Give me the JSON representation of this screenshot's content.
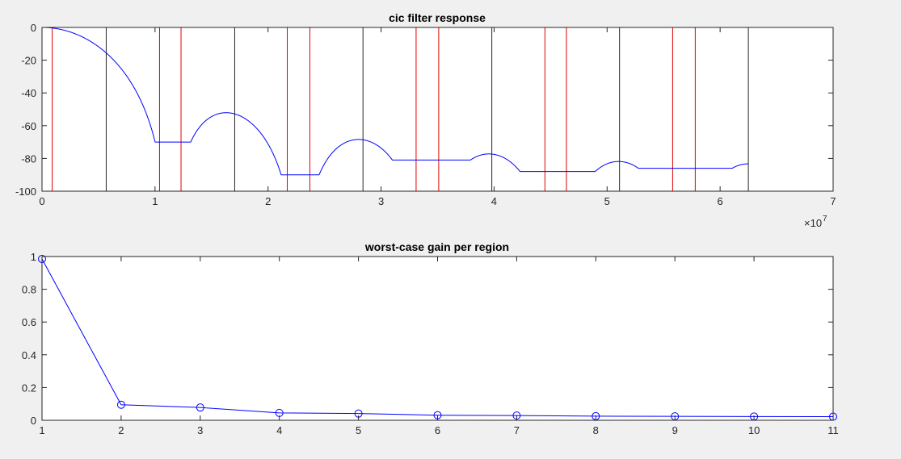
{
  "colors": {
    "background": "#f0f0f0",
    "axes_bg": "#ffffff",
    "axis": "#262626",
    "series": "#0000ff",
    "red_lines": "#e00000",
    "black_lines": "#262626"
  },
  "chart_data": [
    {
      "type": "line",
      "title": "cic filter response",
      "xlabel": "",
      "ylabel": "",
      "xlim": [
        0,
        70000000
      ],
      "ylim": [
        -100,
        0
      ],
      "xticks": [
        0,
        1,
        2,
        3,
        4,
        5,
        6,
        7
      ],
      "xtick_labels": [
        "0",
        "1",
        "2",
        "3",
        "4",
        "5",
        "6",
        "7"
      ],
      "x_exponent": {
        "base": "×10",
        "power": "7"
      },
      "yticks": [
        0,
        -20,
        -40,
        -60,
        -80,
        -100
      ],
      "ytick_labels": [
        "0",
        "-20",
        "-40",
        "-60",
        "-80",
        "-100"
      ],
      "grid": false,
      "legend": "none",
      "response": {
        "description_model": "cic_sinc",
        "stages": 4,
        "decimation": 11,
        "x_max": 62500000,
        "null_spacing": 11360000,
        "null_depths": [
          -70,
          -90,
          -81,
          -88,
          -86
        ]
      },
      "red_vlines": [
        900000,
        10400000,
        12300000,
        21700000,
        23700000,
        33100000,
        35100000,
        44500000,
        46400000,
        55800000,
        57800000
      ],
      "black_vlines": [
        5680000,
        17050000,
        28400000,
        39800000,
        51100000,
        62500000
      ]
    },
    {
      "type": "line",
      "title": "worst-case gain per region",
      "xlabel": "",
      "ylabel": "",
      "xlim": [
        1,
        11
      ],
      "ylim": [
        0,
        1
      ],
      "xticks": [
        1,
        2,
        3,
        4,
        5,
        6,
        7,
        8,
        9,
        10,
        11
      ],
      "xtick_labels": [
        "1",
        "2",
        "3",
        "4",
        "5",
        "6",
        "7",
        "8",
        "9",
        "10",
        "11"
      ],
      "yticks": [
        0,
        0.2,
        0.4,
        0.6,
        0.8,
        1
      ],
      "ytick_labels": [
        "0",
        "0.2",
        "0.4",
        "0.6",
        "0.8",
        "1"
      ],
      "grid": false,
      "legend": "none",
      "marker": "circle",
      "x": [
        1,
        2,
        3,
        4,
        5,
        6,
        7,
        8,
        9,
        10,
        11
      ],
      "y": [
        0.985,
        0.095,
        0.078,
        0.045,
        0.041,
        0.031,
        0.029,
        0.025,
        0.024,
        0.023,
        0.022
      ]
    }
  ]
}
